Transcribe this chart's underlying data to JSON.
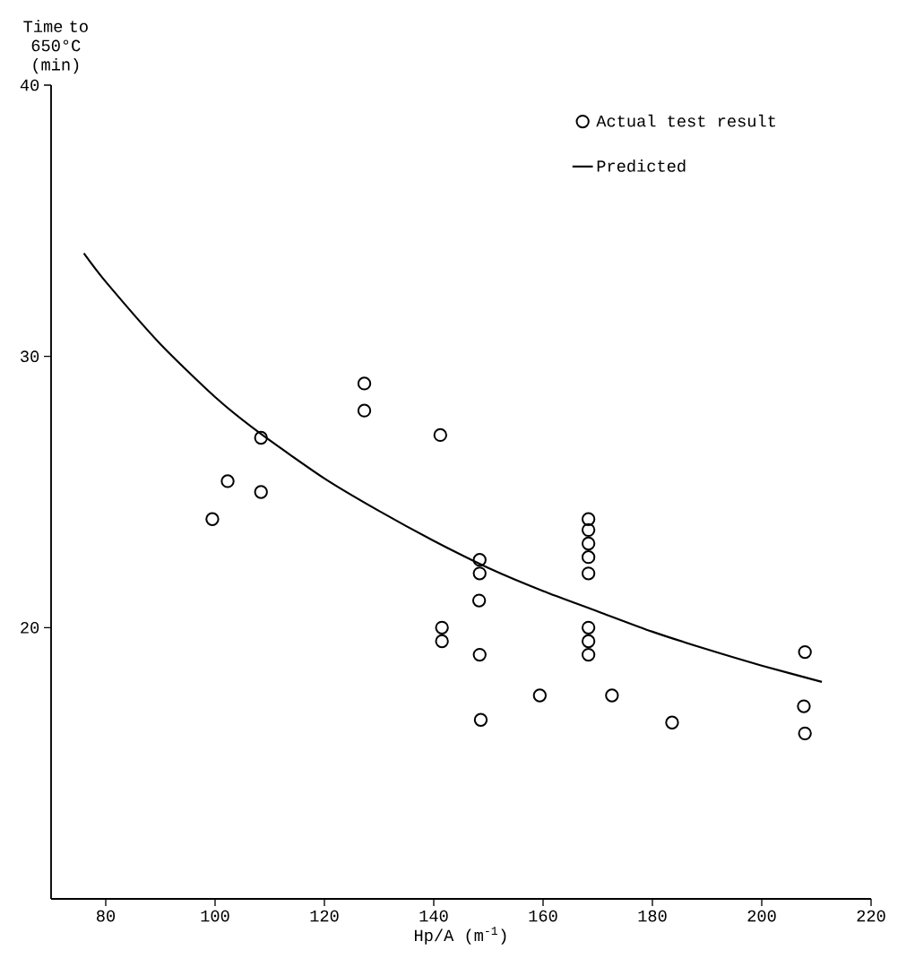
{
  "chart_data": {
    "type": "scatter",
    "xlabel": "Hp/A (m$^{-1}$)",
    "ylabel": "Time to 650°C (min)",
    "xlim": [
      70,
      220
    ],
    "ylim": [
      10,
      40
    ],
    "xticks": [
      80,
      100,
      120,
      140,
      160,
      180,
      200,
      220
    ],
    "yticks": [
      20,
      30,
      40
    ],
    "legend": "top right",
    "grid": false,
    "series": [
      {
        "name": "Actual test result",
        "marker": "circle",
        "color": "#000000",
        "x": [
          99.5,
          102.3,
          108.4,
          108.4,
          127.3,
          127.3,
          141.2,
          141.5,
          141.5,
          148.4,
          148.4,
          148.3,
          148.4,
          148.6,
          159.4,
          168.3,
          168.3,
          168.3,
          168.3,
          168.3,
          168.3,
          168.3,
          168.3,
          172.6,
          183.6,
          207.9,
          207.7,
          207.9
        ],
        "values": [
          24.0,
          25.4,
          27.0,
          25.0,
          29.0,
          28.0,
          27.1,
          20.0,
          19.5,
          22.5,
          22.0,
          21.0,
          19.0,
          16.6,
          17.5,
          24.0,
          23.6,
          23.1,
          22.6,
          22.0,
          20.0,
          19.5,
          19.0,
          17.5,
          16.5,
          19.1,
          17.1,
          16.1
        ]
      },
      {
        "name": "Predicted",
        "type": "line",
        "color": "#000000",
        "x": [
          76,
          80,
          90,
          100,
          108,
          120,
          130,
          140,
          150,
          160,
          170,
          180,
          190,
          200,
          211
        ],
        "values": [
          33.8,
          32.75,
          30.45,
          28.5,
          27.2,
          25.5,
          24.3,
          23.2,
          22.2,
          21.35,
          20.6,
          19.85,
          19.2,
          18.6,
          18.0
        ]
      }
    ]
  }
}
